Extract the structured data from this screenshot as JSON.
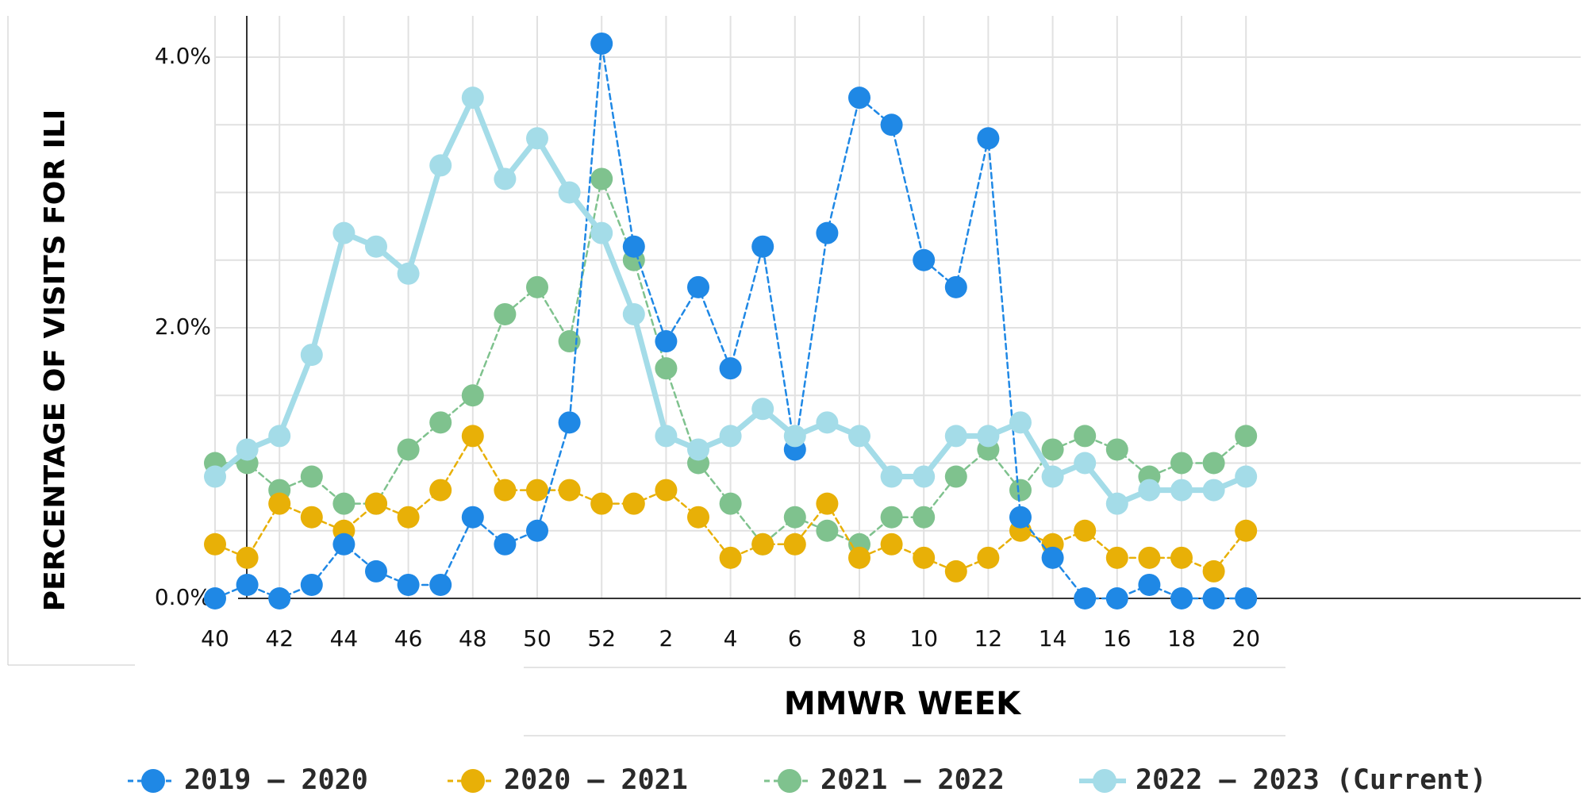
{
  "chart_data": {
    "type": "line",
    "title": "",
    "xlabel": "MMWR WEEK",
    "ylabel": "PERCENTAGE OF VISITS FOR ILI",
    "x": [
      40,
      41,
      42,
      43,
      44,
      45,
      46,
      47,
      48,
      49,
      50,
      51,
      52,
      1,
      2,
      3,
      4,
      5,
      6,
      7,
      8,
      9,
      10,
      11,
      12,
      13,
      14,
      15,
      16,
      17,
      18,
      19,
      20
    ],
    "x_tick_labels": [
      "40",
      "42",
      "44",
      "46",
      "48",
      "50",
      "52",
      "2",
      "4",
      "6",
      "8",
      "10",
      "12",
      "14",
      "16",
      "18",
      "20"
    ],
    "y_tick_labels": [
      "4.0%",
      "2.0%",
      "0.0%"
    ],
    "ylim": [
      0,
      4.2
    ],
    "grid": true,
    "legend_position": "bottom",
    "series": [
      {
        "name": "2019 – 2020",
        "color": "#1f88e5",
        "style": "dashed",
        "values": [
          0.0,
          0.1,
          0.0,
          0.1,
          0.4,
          0.2,
          0.1,
          0.1,
          0.6,
          0.4,
          0.5,
          1.3,
          4.1,
          2.6,
          1.9,
          2.3,
          1.7,
          2.6,
          1.1,
          2.7,
          3.7,
          3.5,
          2.5,
          2.3,
          3.4,
          0.6,
          0.3,
          0.0,
          0.0,
          0.1,
          0.0,
          0.0,
          0.0
        ]
      },
      {
        "name": "2020 – 2021",
        "color": "#e8b007",
        "style": "dashed",
        "values": [
          0.4,
          0.3,
          0.7,
          0.6,
          0.5,
          0.7,
          0.6,
          0.8,
          1.2,
          0.8,
          0.8,
          0.8,
          0.7,
          0.7,
          0.8,
          0.6,
          0.3,
          0.4,
          0.4,
          0.7,
          0.3,
          0.4,
          0.3,
          0.2,
          0.3,
          0.5,
          0.4,
          0.5,
          0.3,
          0.3,
          0.3,
          0.2,
          0.5
        ]
      },
      {
        "name": "2021 – 2022",
        "color": "#7fc28e",
        "style": "dashed",
        "values": [
          1.0,
          1.0,
          0.8,
          0.9,
          0.7,
          0.7,
          1.1,
          1.3,
          1.5,
          2.1,
          2.3,
          1.9,
          3.1,
          2.5,
          1.7,
          1.0,
          0.7,
          0.4,
          0.6,
          0.5,
          0.4,
          0.6,
          0.6,
          0.9,
          1.1,
          0.8,
          1.1,
          1.2,
          1.1,
          0.9,
          1.0,
          1.0,
          1.2
        ]
      },
      {
        "name": "2022 – 2023 (Current)",
        "color": "#a4dce8",
        "style": "solid",
        "values": [
          0.9,
          1.1,
          1.2,
          1.8,
          2.7,
          2.6,
          2.4,
          3.2,
          3.7,
          3.1,
          3.4,
          3.0,
          2.7,
          2.1,
          1.2,
          1.1,
          1.2,
          1.4,
          1.2,
          1.3,
          1.2,
          0.9,
          0.9,
          1.2,
          1.2,
          1.3,
          0.9,
          1.0,
          0.7,
          0.8,
          0.8,
          0.8,
          0.9
        ]
      }
    ]
  }
}
